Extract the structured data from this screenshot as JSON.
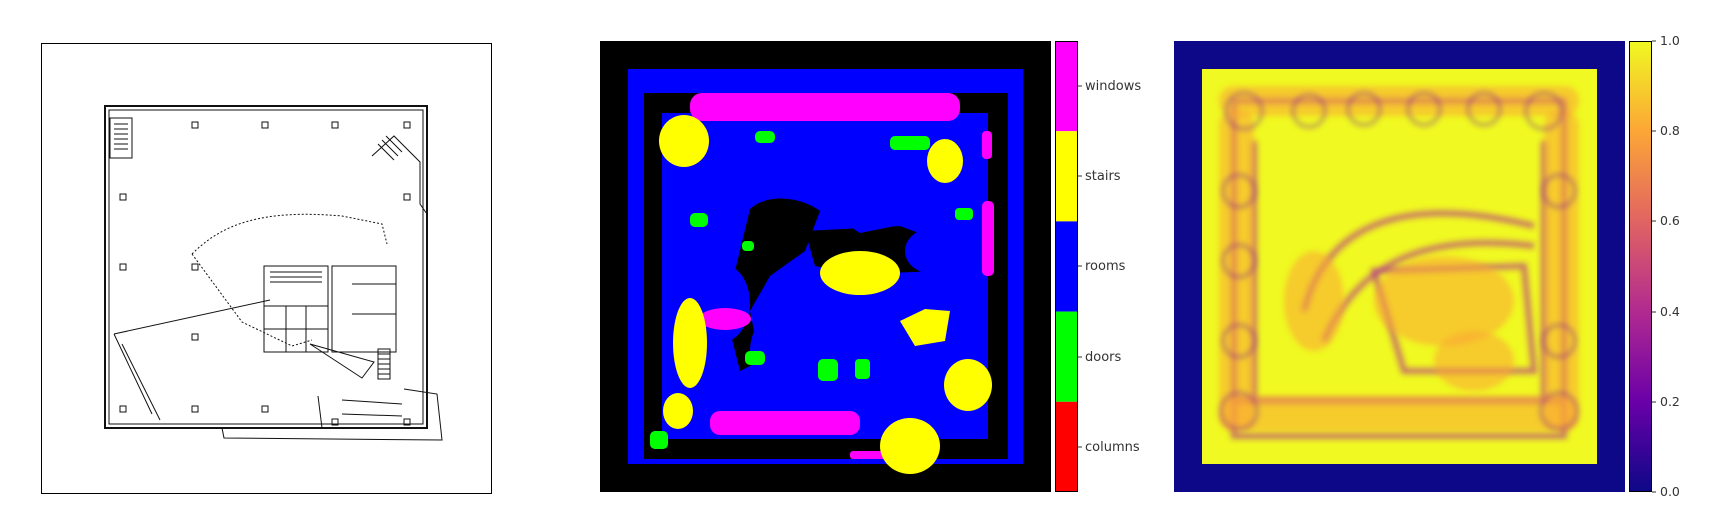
{
  "segmentation_legend": {
    "classes": [
      {
        "label": "windows",
        "color": "#ff00ff"
      },
      {
        "label": "stairs",
        "color": "#ffff00"
      },
      {
        "label": "rooms",
        "color": "#0000ff"
      },
      {
        "label": "doors",
        "color": "#00ff00"
      },
      {
        "label": "columns",
        "color": "#ff0000"
      }
    ],
    "background_color": "#000000"
  },
  "heatmap": {
    "colormap": "plasma",
    "ticks": [
      "1.0",
      "0.8",
      "0.6",
      "0.4",
      "0.2",
      "0.0"
    ],
    "range": [
      0.0,
      1.0
    ],
    "colors": {
      "high": "#f0f921",
      "mid_high": "#fca636",
      "mid": "#e16462",
      "mid_low": "#b12a90",
      "low_mid": "#6a00a8",
      "low": "#0d0887"
    }
  }
}
